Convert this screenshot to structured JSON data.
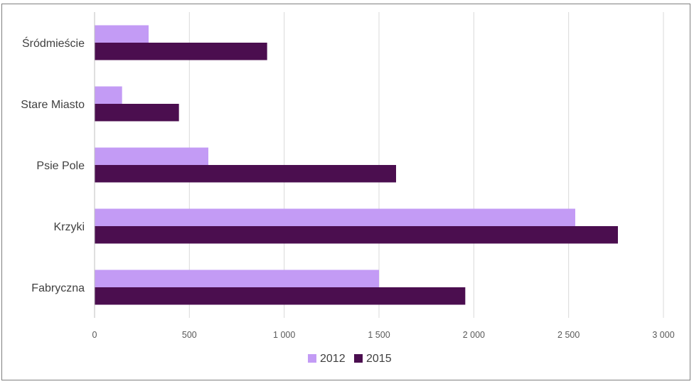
{
  "chart_data": {
    "type": "bar",
    "orientation": "horizontal",
    "categories": [
      "Śródmieście",
      "Stare Miasto",
      "Psie Pole",
      "Krzyki",
      "Fabryczna"
    ],
    "series": [
      {
        "name": "2012",
        "color": "#c39bf5",
        "values": [
          285,
          145,
          600,
          2535,
          1500
        ]
      },
      {
        "name": "2015",
        "color": "#4b0e4f",
        "values": [
          910,
          445,
          1590,
          2760,
          1955
        ]
      }
    ],
    "xlim": [
      0,
      3000
    ],
    "xticks": [
      0,
      500,
      1000,
      1500,
      2000,
      2500,
      3000
    ],
    "xtick_labels": [
      "0",
      "500",
      "1 000",
      "1 500",
      "2 000",
      "2 500",
      "3 000"
    ],
    "grid": true,
    "legend_position": "bottom"
  }
}
